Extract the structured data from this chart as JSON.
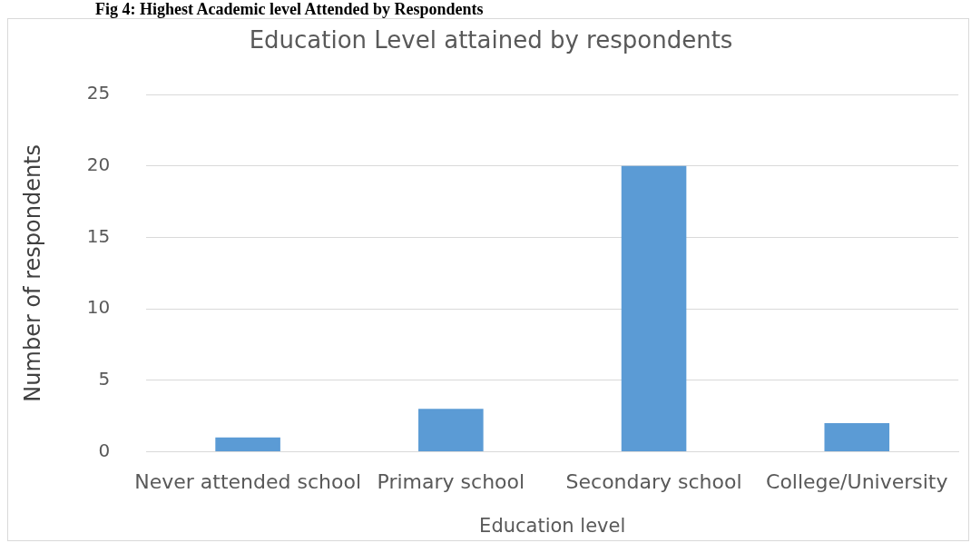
{
  "chart_data": {
    "type": "bar",
    "title": "Education Level attained by respondents",
    "xlabel": "Education level",
    "ylabel": "Number of respondents",
    "annotations": [
      "Fig 4: Highest Academic level Attended by Respondents"
    ],
    "categories": [
      "Never attended school",
      "Primary school",
      "Secondary school",
      "College/University"
    ],
    "values": [
      1,
      3,
      20,
      2
    ],
    "color": "#5b9bd5",
    "ylim": [
      0,
      25
    ],
    "yticks": [
      0,
      5,
      10,
      15,
      20,
      25
    ],
    "grid": "y"
  }
}
